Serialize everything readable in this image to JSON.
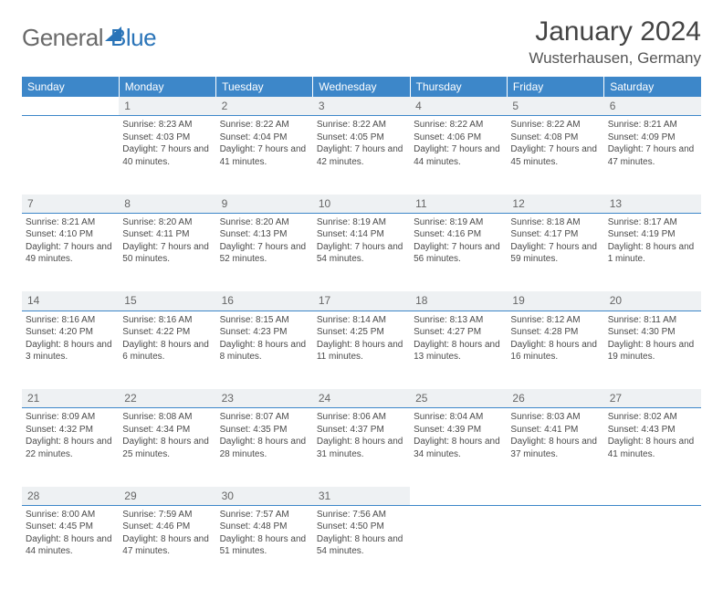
{
  "logo": {
    "part1": "General",
    "part2": "Blue"
  },
  "title": "January 2024",
  "location": "Wusterhausen, Germany",
  "colors": {
    "header_bg": "#3d87c9",
    "header_text": "#ffffff",
    "daynum_bg": "#eef1f3",
    "row_border": "#3d87c9",
    "body_text": "#4a4a4a",
    "logo_gray": "#6a6a6a",
    "logo_blue": "#2a74b8"
  },
  "weekdays": [
    "Sunday",
    "Monday",
    "Tuesday",
    "Wednesday",
    "Thursday",
    "Friday",
    "Saturday"
  ],
  "weeks": [
    {
      "daynums": [
        "",
        "1",
        "2",
        "3",
        "4",
        "5",
        "6"
      ],
      "cells": [
        null,
        {
          "sunrise": "Sunrise: 8:23 AM",
          "sunset": "Sunset: 4:03 PM",
          "daylight": "Daylight: 7 hours and 40 minutes."
        },
        {
          "sunrise": "Sunrise: 8:22 AM",
          "sunset": "Sunset: 4:04 PM",
          "daylight": "Daylight: 7 hours and 41 minutes."
        },
        {
          "sunrise": "Sunrise: 8:22 AM",
          "sunset": "Sunset: 4:05 PM",
          "daylight": "Daylight: 7 hours and 42 minutes."
        },
        {
          "sunrise": "Sunrise: 8:22 AM",
          "sunset": "Sunset: 4:06 PM",
          "daylight": "Daylight: 7 hours and 44 minutes."
        },
        {
          "sunrise": "Sunrise: 8:22 AM",
          "sunset": "Sunset: 4:08 PM",
          "daylight": "Daylight: 7 hours and 45 minutes."
        },
        {
          "sunrise": "Sunrise: 8:21 AM",
          "sunset": "Sunset: 4:09 PM",
          "daylight": "Daylight: 7 hours and 47 minutes."
        }
      ]
    },
    {
      "daynums": [
        "7",
        "8",
        "9",
        "10",
        "11",
        "12",
        "13"
      ],
      "cells": [
        {
          "sunrise": "Sunrise: 8:21 AM",
          "sunset": "Sunset: 4:10 PM",
          "daylight": "Daylight: 7 hours and 49 minutes."
        },
        {
          "sunrise": "Sunrise: 8:20 AM",
          "sunset": "Sunset: 4:11 PM",
          "daylight": "Daylight: 7 hours and 50 minutes."
        },
        {
          "sunrise": "Sunrise: 8:20 AM",
          "sunset": "Sunset: 4:13 PM",
          "daylight": "Daylight: 7 hours and 52 minutes."
        },
        {
          "sunrise": "Sunrise: 8:19 AM",
          "sunset": "Sunset: 4:14 PM",
          "daylight": "Daylight: 7 hours and 54 minutes."
        },
        {
          "sunrise": "Sunrise: 8:19 AM",
          "sunset": "Sunset: 4:16 PM",
          "daylight": "Daylight: 7 hours and 56 minutes."
        },
        {
          "sunrise": "Sunrise: 8:18 AM",
          "sunset": "Sunset: 4:17 PM",
          "daylight": "Daylight: 7 hours and 59 minutes."
        },
        {
          "sunrise": "Sunrise: 8:17 AM",
          "sunset": "Sunset: 4:19 PM",
          "daylight": "Daylight: 8 hours and 1 minute."
        }
      ]
    },
    {
      "daynums": [
        "14",
        "15",
        "16",
        "17",
        "18",
        "19",
        "20"
      ],
      "cells": [
        {
          "sunrise": "Sunrise: 8:16 AM",
          "sunset": "Sunset: 4:20 PM",
          "daylight": "Daylight: 8 hours and 3 minutes."
        },
        {
          "sunrise": "Sunrise: 8:16 AM",
          "sunset": "Sunset: 4:22 PM",
          "daylight": "Daylight: 8 hours and 6 minutes."
        },
        {
          "sunrise": "Sunrise: 8:15 AM",
          "sunset": "Sunset: 4:23 PM",
          "daylight": "Daylight: 8 hours and 8 minutes."
        },
        {
          "sunrise": "Sunrise: 8:14 AM",
          "sunset": "Sunset: 4:25 PM",
          "daylight": "Daylight: 8 hours and 11 minutes."
        },
        {
          "sunrise": "Sunrise: 8:13 AM",
          "sunset": "Sunset: 4:27 PM",
          "daylight": "Daylight: 8 hours and 13 minutes."
        },
        {
          "sunrise": "Sunrise: 8:12 AM",
          "sunset": "Sunset: 4:28 PM",
          "daylight": "Daylight: 8 hours and 16 minutes."
        },
        {
          "sunrise": "Sunrise: 8:11 AM",
          "sunset": "Sunset: 4:30 PM",
          "daylight": "Daylight: 8 hours and 19 minutes."
        }
      ]
    },
    {
      "daynums": [
        "21",
        "22",
        "23",
        "24",
        "25",
        "26",
        "27"
      ],
      "cells": [
        {
          "sunrise": "Sunrise: 8:09 AM",
          "sunset": "Sunset: 4:32 PM",
          "daylight": "Daylight: 8 hours and 22 minutes."
        },
        {
          "sunrise": "Sunrise: 8:08 AM",
          "sunset": "Sunset: 4:34 PM",
          "daylight": "Daylight: 8 hours and 25 minutes."
        },
        {
          "sunrise": "Sunrise: 8:07 AM",
          "sunset": "Sunset: 4:35 PM",
          "daylight": "Daylight: 8 hours and 28 minutes."
        },
        {
          "sunrise": "Sunrise: 8:06 AM",
          "sunset": "Sunset: 4:37 PM",
          "daylight": "Daylight: 8 hours and 31 minutes."
        },
        {
          "sunrise": "Sunrise: 8:04 AM",
          "sunset": "Sunset: 4:39 PM",
          "daylight": "Daylight: 8 hours and 34 minutes."
        },
        {
          "sunrise": "Sunrise: 8:03 AM",
          "sunset": "Sunset: 4:41 PM",
          "daylight": "Daylight: 8 hours and 37 minutes."
        },
        {
          "sunrise": "Sunrise: 8:02 AM",
          "sunset": "Sunset: 4:43 PM",
          "daylight": "Daylight: 8 hours and 41 minutes."
        }
      ]
    },
    {
      "daynums": [
        "28",
        "29",
        "30",
        "31",
        "",
        "",
        ""
      ],
      "cells": [
        {
          "sunrise": "Sunrise: 8:00 AM",
          "sunset": "Sunset: 4:45 PM",
          "daylight": "Daylight: 8 hours and 44 minutes."
        },
        {
          "sunrise": "Sunrise: 7:59 AM",
          "sunset": "Sunset: 4:46 PM",
          "daylight": "Daylight: 8 hours and 47 minutes."
        },
        {
          "sunrise": "Sunrise: 7:57 AM",
          "sunset": "Sunset: 4:48 PM",
          "daylight": "Daylight: 8 hours and 51 minutes."
        },
        {
          "sunrise": "Sunrise: 7:56 AM",
          "sunset": "Sunset: 4:50 PM",
          "daylight": "Daylight: 8 hours and 54 minutes."
        },
        null,
        null,
        null
      ]
    }
  ]
}
